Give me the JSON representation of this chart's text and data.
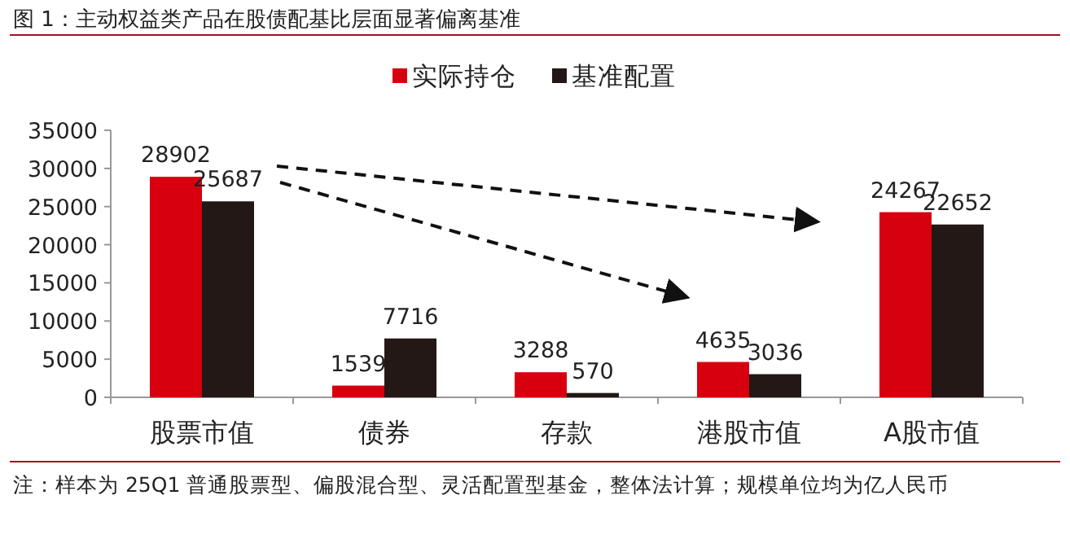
{
  "chart_data": {
    "type": "bar",
    "title": "图 1：主动权益类产品在股债配基比层面显著偏离基准",
    "categories": [
      "股票市值",
      "债券",
      "存款",
      "港股市值",
      "A股市值"
    ],
    "series": [
      {
        "name": "实际持仓",
        "color": "#d7000f",
        "values": [
          28902,
          1539,
          3288,
          4635,
          24267
        ]
      },
      {
        "name": "基准配置",
        "color": "#231815",
        "values": [
          25687,
          7716,
          570,
          3036,
          22652
        ]
      }
    ],
    "ylim": [
      0,
      35000
    ],
    "yticks": [
      0,
      5000,
      10000,
      15000,
      20000,
      25000,
      30000,
      35000
    ],
    "data_labels": true,
    "legend": "top",
    "grid": false,
    "annotations": [
      "注：样本为 25Q1 普通股票型、偏股混合型、灵活配置型基金，整体法计算；规模单位均为亿人民币"
    ]
  }
}
